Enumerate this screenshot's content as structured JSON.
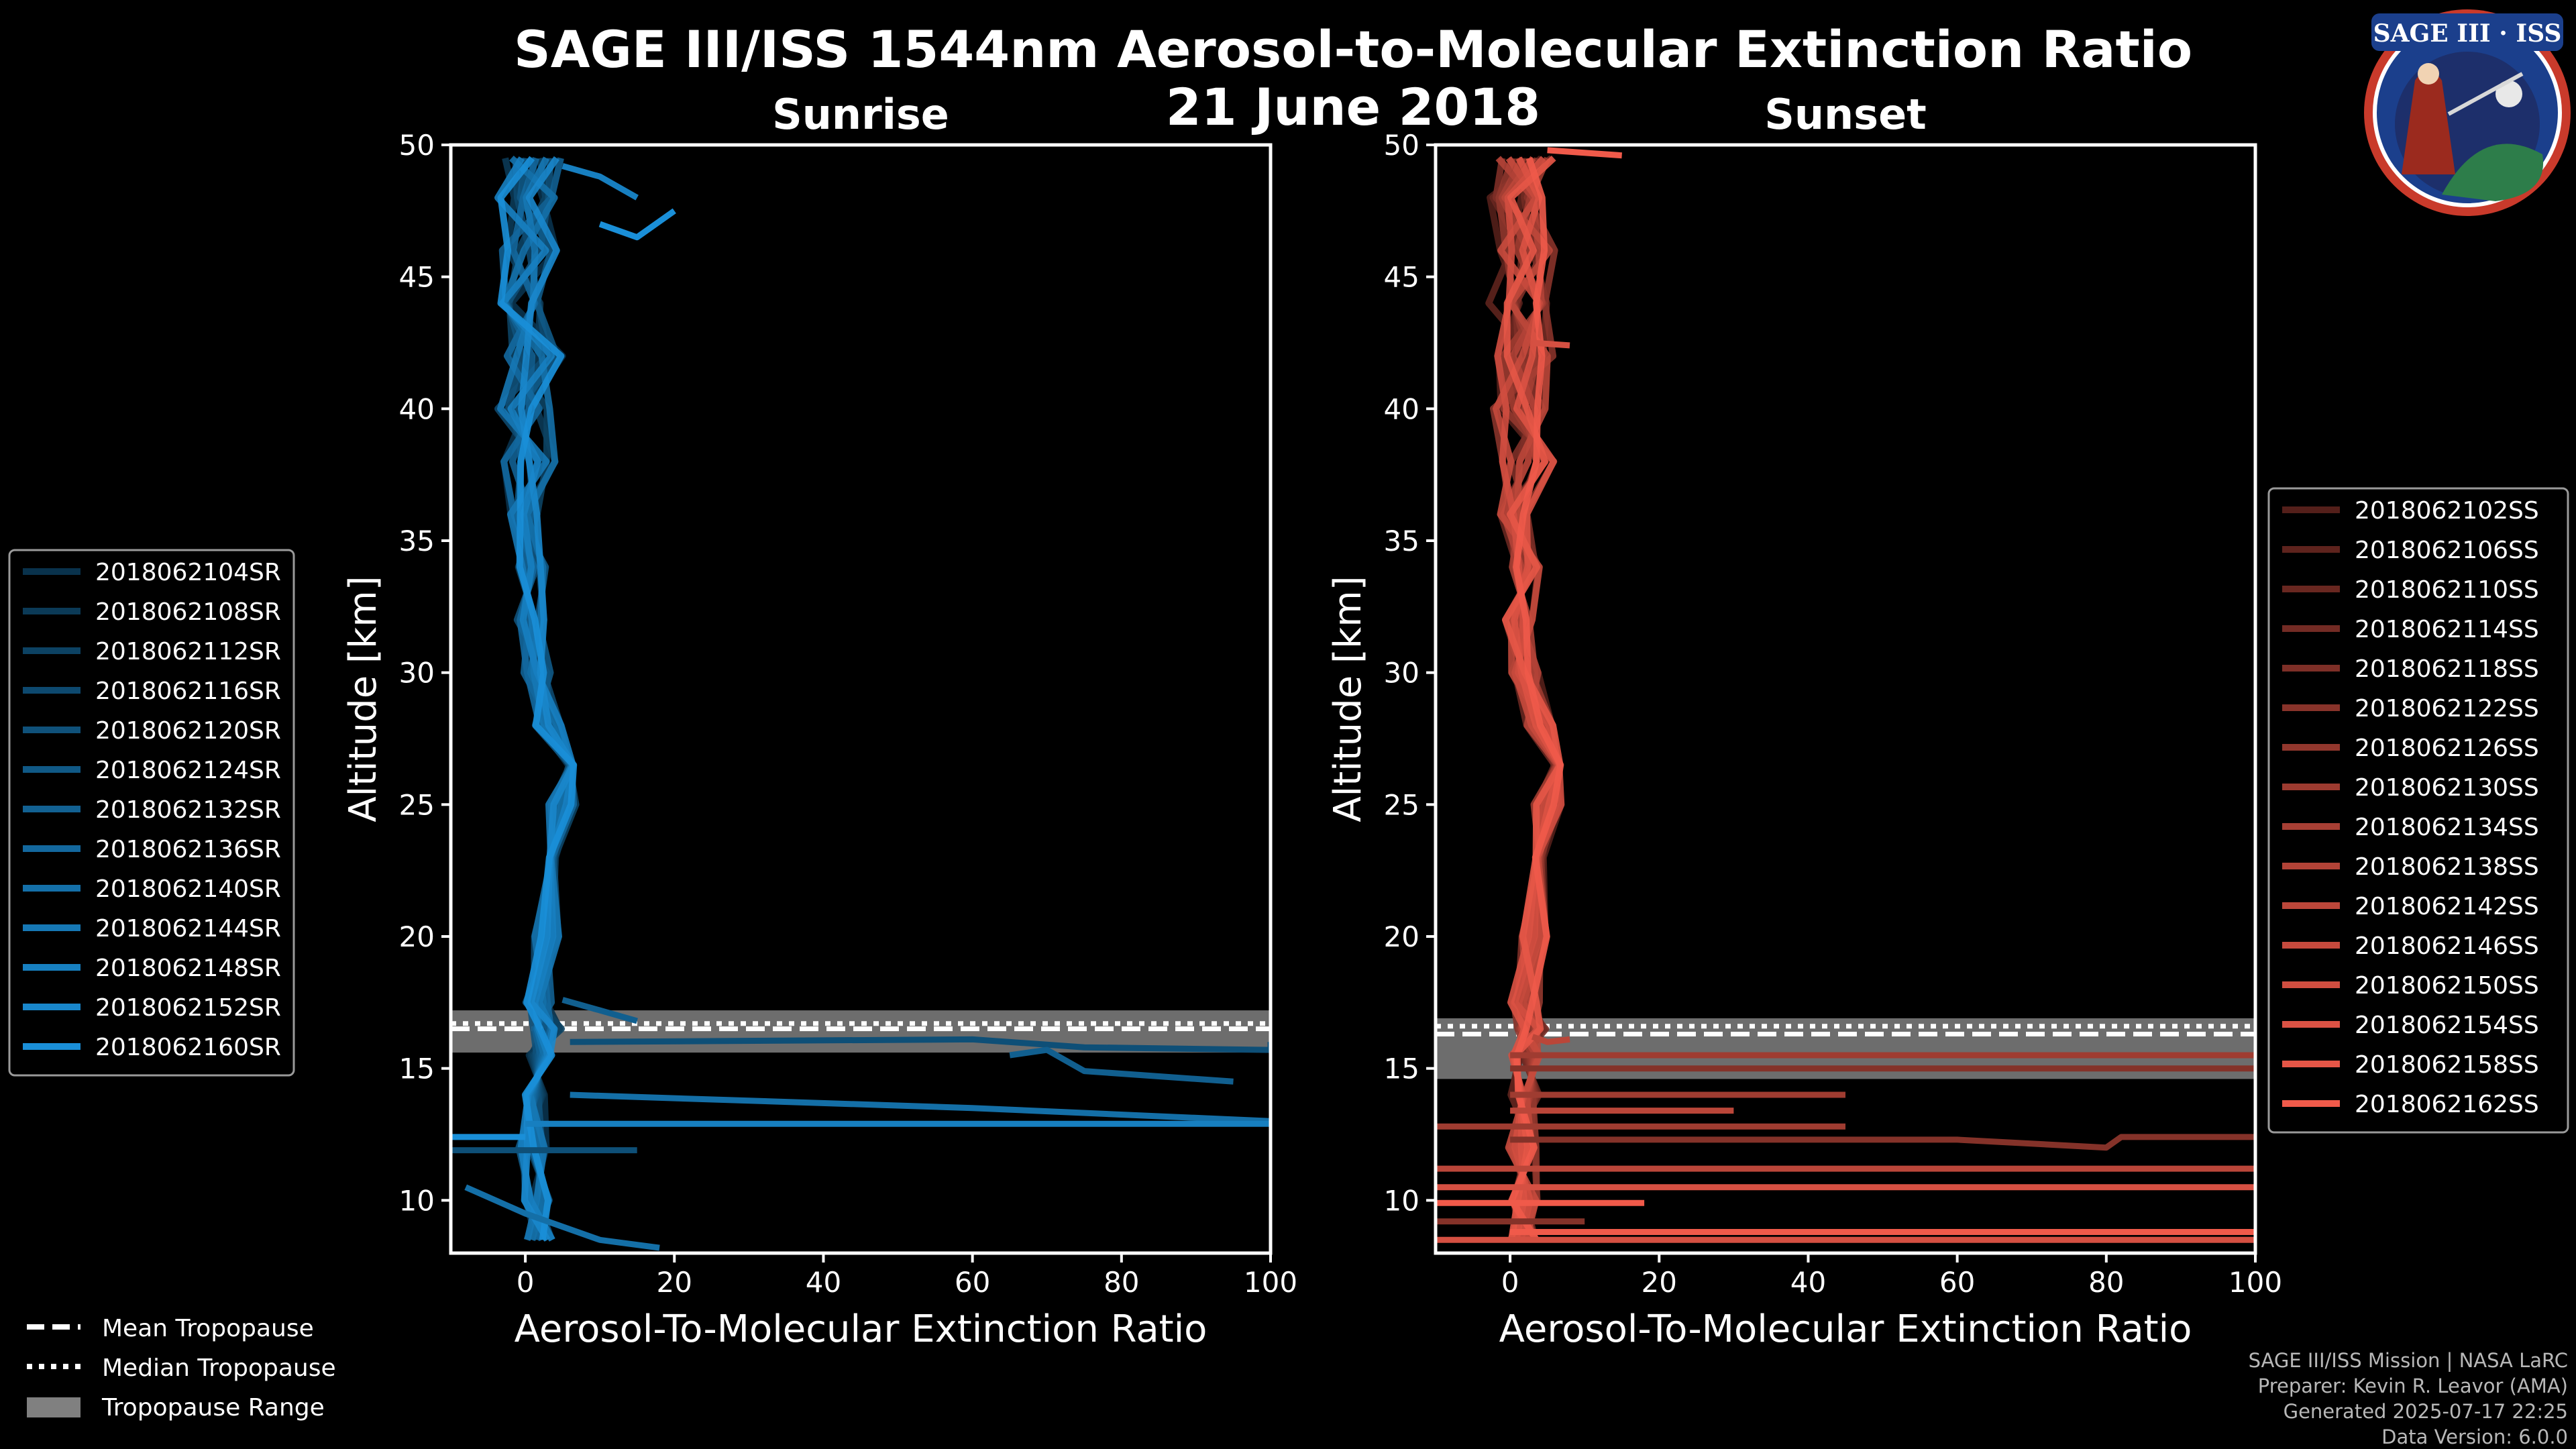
{
  "title": "SAGE III/ISS 1544nm Aerosol-to-Molecular Extinction Ratio",
  "date": "21 June 2018",
  "logo": {
    "text": "SAGE III · ISS"
  },
  "footer": {
    "mission": "SAGE III/ISS Mission | NASA LaRC",
    "preparer": "Preparer: Kevin R. Leavor (AMA)",
    "generated": "Generated 2025-07-17 22:25",
    "version": "Data Version: 6.0.0"
  },
  "tropopause_legend": {
    "mean": "Mean Tropopause",
    "median": "Median Tropopause",
    "range": "Tropopause Range"
  },
  "chart_data": [
    {
      "type": "line",
      "title": "Sunrise",
      "xlabel": "Aerosol-To-Molecular Extinction Ratio",
      "ylabel": "Altitude [km]",
      "xlim": [
        -10,
        100
      ],
      "ylim": [
        8,
        50
      ],
      "xticks": [
        0,
        20,
        40,
        60,
        80,
        100
      ],
      "yticks": [
        10,
        15,
        20,
        25,
        30,
        35,
        40,
        45,
        50
      ],
      "legend_position": "left",
      "color": "#1a8fd8",
      "tropopause": {
        "mean_km": 16.5,
        "median_km": 16.7,
        "range_km": [
          15.6,
          17.2
        ]
      },
      "series": [
        {
          "name": "2018062104SR"
        },
        {
          "name": "2018062108SR"
        },
        {
          "name": "2018062112SR"
        },
        {
          "name": "2018062116SR"
        },
        {
          "name": "2018062120SR"
        },
        {
          "name": "2018062124SR"
        },
        {
          "name": "2018062132SR"
        },
        {
          "name": "2018062136SR"
        },
        {
          "name": "2018062140SR"
        },
        {
          "name": "2018062144SR"
        },
        {
          "name": "2018062148SR"
        },
        {
          "name": "2018062152SR"
        },
        {
          "name": "2018062160SR"
        }
      ],
      "median_profile": {
        "alt": [
          8.5,
          10,
          12,
          14,
          15.5,
          16.5,
          17.5,
          20,
          23,
          25,
          26.5,
          28,
          30,
          32,
          34,
          36,
          38,
          40,
          42,
          44,
          46,
          48,
          49.5
        ],
        "ratio": [
          2,
          1.5,
          1,
          1.5,
          2,
          3,
          2,
          2.5,
          4,
          5,
          5,
          3,
          1.5,
          0.5,
          1,
          0,
          1,
          0,
          1,
          0,
          0.5,
          0,
          1
        ]
      },
      "excursions": [
        {
          "alt": [
            16.0,
            16.1,
            15.8,
            15.7,
            16.0
          ],
          "ratio": [
            6,
            60,
            75,
            100,
            100
          ]
        },
        {
          "alt": [
            15.5,
            15.7,
            14.9,
            14.5
          ],
          "ratio": [
            65,
            70,
            75,
            95
          ]
        },
        {
          "alt": [
            14.0,
            13.5,
            13.0
          ],
          "ratio": [
            6,
            60,
            100
          ]
        },
        {
          "alt": [
            12.9,
            12.9
          ],
          "ratio": [
            0,
            100
          ]
        },
        {
          "alt": [
            12.4,
            12.4
          ],
          "ratio": [
            -10,
            0
          ]
        },
        {
          "alt": [
            11.9,
            11.9
          ],
          "ratio": [
            -10,
            15
          ]
        },
        {
          "alt": [
            17.6,
            17.2,
            16.8
          ],
          "ratio": [
            5,
            10,
            15
          ]
        },
        {
          "alt": [
            10.5,
            9.5,
            8.5,
            8.2
          ],
          "ratio": [
            -8,
            0,
            10,
            18
          ]
        },
        {
          "alt": [
            49.2,
            48.8,
            48.0
          ],
          "ratio": [
            5,
            10,
            15
          ]
        },
        {
          "alt": [
            47.0,
            46.5,
            47.5
          ],
          "ratio": [
            10,
            15,
            20
          ]
        }
      ]
    },
    {
      "type": "line",
      "title": "Sunset",
      "xlabel": "Aerosol-To-Molecular Extinction Ratio",
      "ylabel": "Altitude [km]",
      "xlim": [
        -10,
        100
      ],
      "ylim": [
        8,
        50
      ],
      "xticks": [
        0,
        20,
        40,
        60,
        80,
        100
      ],
      "yticks": [
        10,
        15,
        20,
        25,
        30,
        35,
        40,
        45,
        50
      ],
      "legend_position": "right",
      "color": "#f05a4a",
      "tropopause": {
        "mean_km": 16.3,
        "median_km": 16.6,
        "range_km": [
          14.6,
          16.9
        ]
      },
      "series": [
        {
          "name": "2018062102SS"
        },
        {
          "name": "2018062106SS"
        },
        {
          "name": "2018062110SS"
        },
        {
          "name": "2018062114SS"
        },
        {
          "name": "2018062118SS"
        },
        {
          "name": "2018062122SS"
        },
        {
          "name": "2018062126SS"
        },
        {
          "name": "2018062130SS"
        },
        {
          "name": "2018062134SS"
        },
        {
          "name": "2018062138SS"
        },
        {
          "name": "2018062142SS"
        },
        {
          "name": "2018062146SS"
        },
        {
          "name": "2018062150SS"
        },
        {
          "name": "2018062154SS"
        },
        {
          "name": "2018062158SS"
        },
        {
          "name": "2018062162SS"
        }
      ],
      "median_profile": {
        "alt": [
          8.5,
          10,
          12,
          14,
          15.5,
          16.5,
          17.5,
          20,
          23,
          25,
          26.5,
          28,
          30,
          32,
          34,
          36,
          38,
          40,
          42,
          44,
          46,
          48,
          49.5
        ],
        "ratio": [
          2,
          2,
          1.5,
          2,
          2,
          3,
          2,
          3,
          4,
          5,
          6,
          4,
          2,
          1,
          2,
          0.5,
          2,
          1,
          2,
          1,
          2,
          1,
          2
        ]
      },
      "excursions": [
        {
          "alt": [
            12.3,
            12.3,
            12.0,
            12.4,
            12.4
          ],
          "ratio": [
            0,
            60,
            80,
            82,
            100
          ]
        },
        {
          "alt": [
            14.0,
            14.0
          ],
          "ratio": [
            0,
            45
          ]
        },
        {
          "alt": [
            11.2,
            11.2
          ],
          "ratio": [
            -10,
            100
          ]
        },
        {
          "alt": [
            10.5,
            10.5
          ],
          "ratio": [
            -10,
            100
          ]
        },
        {
          "alt": [
            9.9,
            9.9
          ],
          "ratio": [
            -10,
            18
          ]
        },
        {
          "alt": [
            9.2,
            9.2
          ],
          "ratio": [
            -10,
            10
          ]
        },
        {
          "alt": [
            12.8,
            12.8
          ],
          "ratio": [
            -10,
            45
          ]
        },
        {
          "alt": [
            13.4,
            13.4
          ],
          "ratio": [
            0,
            30
          ]
        },
        {
          "alt": [
            8.5,
            8.5
          ],
          "ratio": [
            -10,
            100
          ]
        },
        {
          "alt": [
            8.8,
            8.8
          ],
          "ratio": [
            0,
            100
          ]
        },
        {
          "alt": [
            15.0,
            15.0
          ],
          "ratio": [
            0,
            100
          ]
        },
        {
          "alt": [
            15.5,
            15.5
          ],
          "ratio": [
            0,
            100
          ]
        },
        {
          "alt": [
            16.2,
            16.0,
            16.1
          ],
          "ratio": [
            3,
            5,
            8
          ]
        },
        {
          "alt": [
            42.5,
            42.4
          ],
          "ratio": [
            3,
            8
          ]
        },
        {
          "alt": [
            49.8,
            49.6
          ],
          "ratio": [
            5,
            15
          ]
        }
      ]
    }
  ]
}
